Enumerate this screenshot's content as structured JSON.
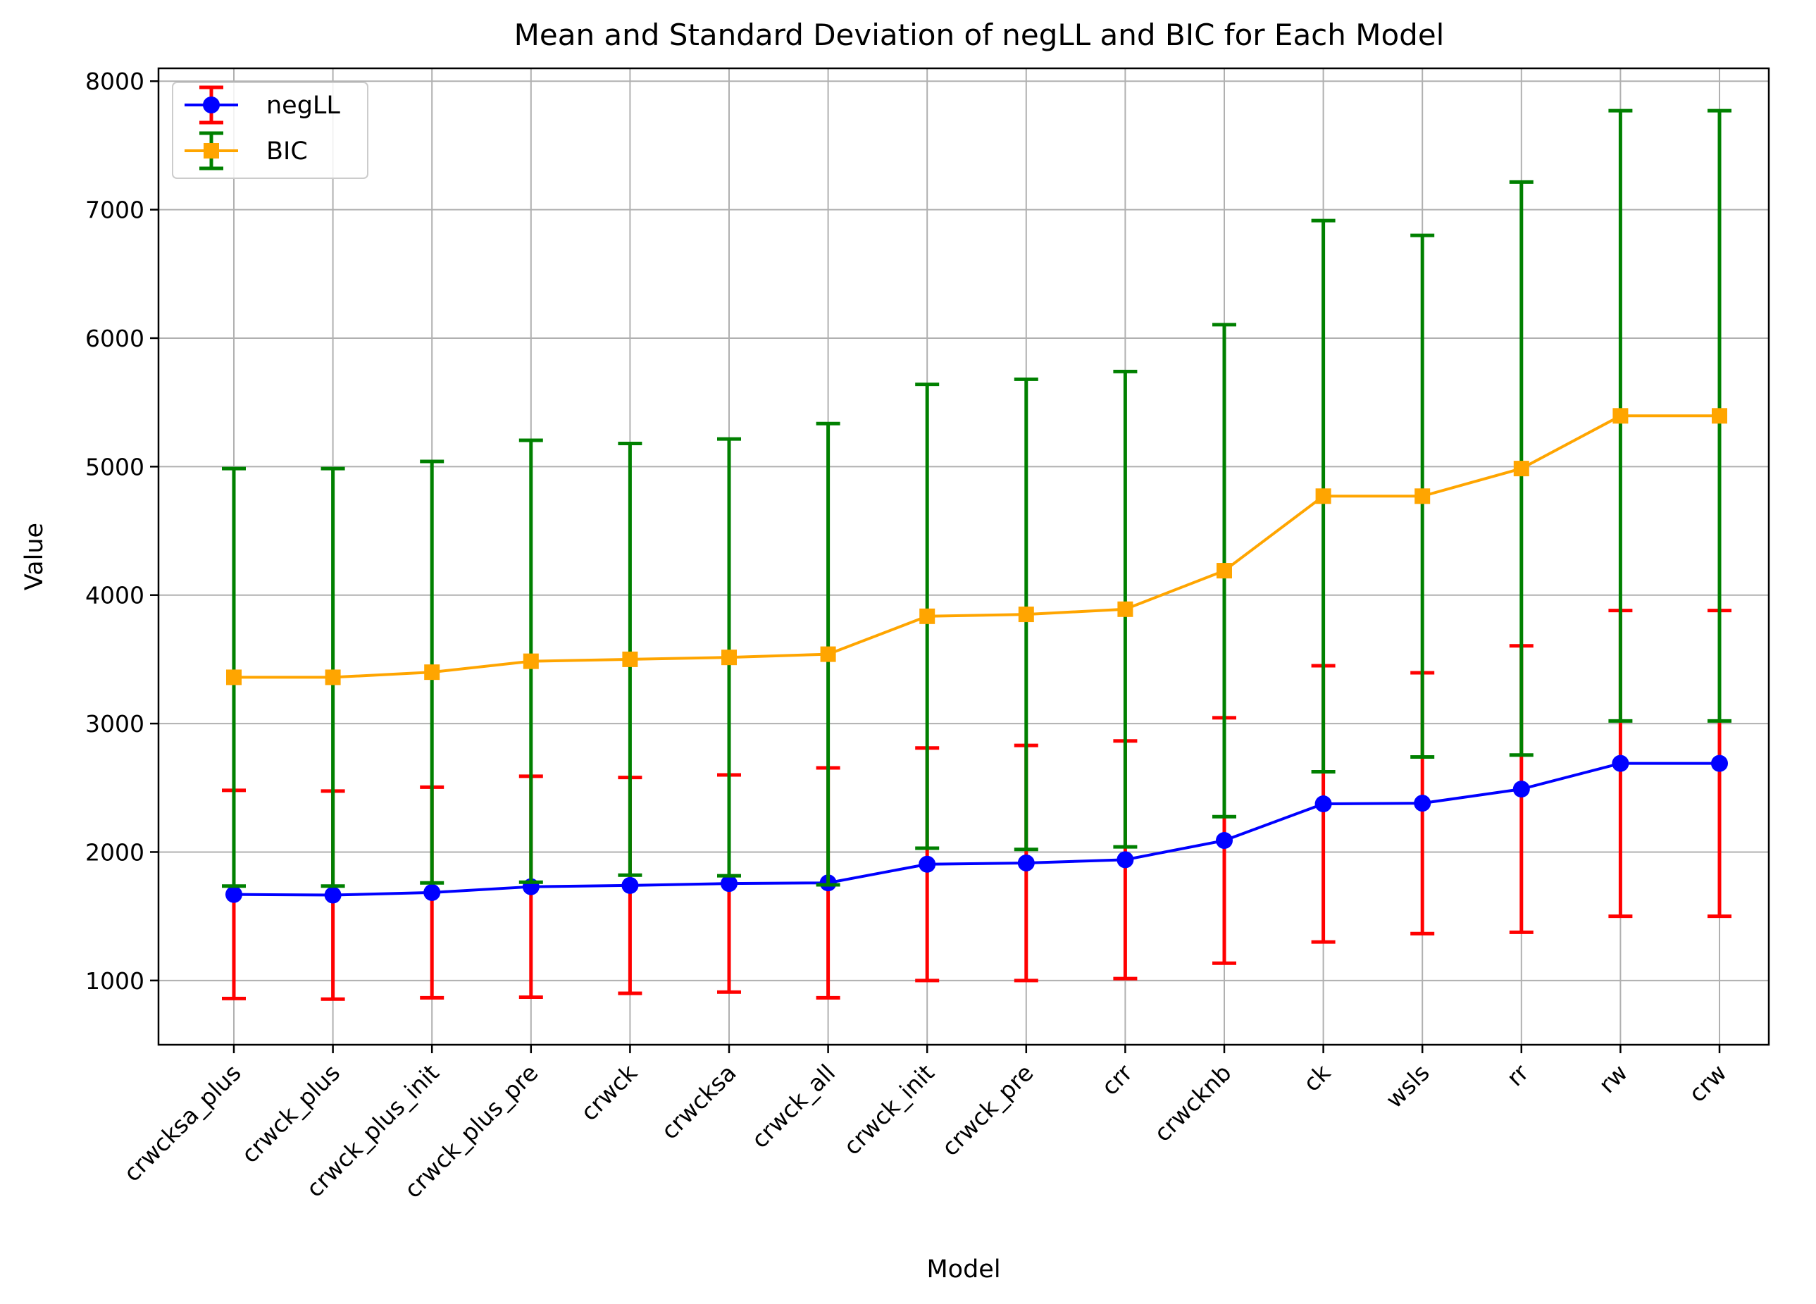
{
  "chart_data": {
    "type": "line",
    "title": "Mean and Standard Deviation of negLL and BIC for Each Model",
    "xlabel": "Model",
    "ylabel": "Value",
    "ylim": [
      500,
      8100
    ],
    "yticks": [
      1000,
      2000,
      3000,
      4000,
      5000,
      6000,
      7000,
      8000
    ],
    "grid": true,
    "legend_position": "top-left",
    "categories": [
      "crwcksa_plus",
      "crwck_plus",
      "crwck_plus_init",
      "crwck_plus_pre",
      "crwck",
      "crwcksa",
      "crwck_all",
      "crwck_init",
      "crwck_pre",
      "crr",
      "crwcknb",
      "ck",
      "wsls",
      "rr",
      "rw",
      "crw"
    ],
    "series": [
      {
        "name": "negLL",
        "line_color": "#0000ff",
        "error_color": "#ff0000",
        "marker": "circle",
        "values": [
          1670,
          1665,
          1685,
          1730,
          1740,
          1755,
          1760,
          1905,
          1915,
          1940,
          2090,
          2375,
          2380,
          2490,
          2690,
          2690
        ],
        "std": [
          810,
          810,
          820,
          860,
          840,
          845,
          895,
          905,
          915,
          925,
          955,
          1075,
          1015,
          1115,
          1190,
          1190
        ]
      },
      {
        "name": "BIC",
        "line_color": "#ffa500",
        "error_color": "#008000",
        "marker": "square",
        "values": [
          3360,
          3360,
          3400,
          3485,
          3500,
          3515,
          3540,
          3835,
          3850,
          3890,
          4190,
          4770,
          4770,
          4985,
          5395,
          5395
        ],
        "std": [
          1625,
          1625,
          1640,
          1720,
          1680,
          1700,
          1795,
          1805,
          1830,
          1850,
          1915,
          2145,
          2030,
          2230,
          2375,
          2375
        ]
      }
    ]
  }
}
